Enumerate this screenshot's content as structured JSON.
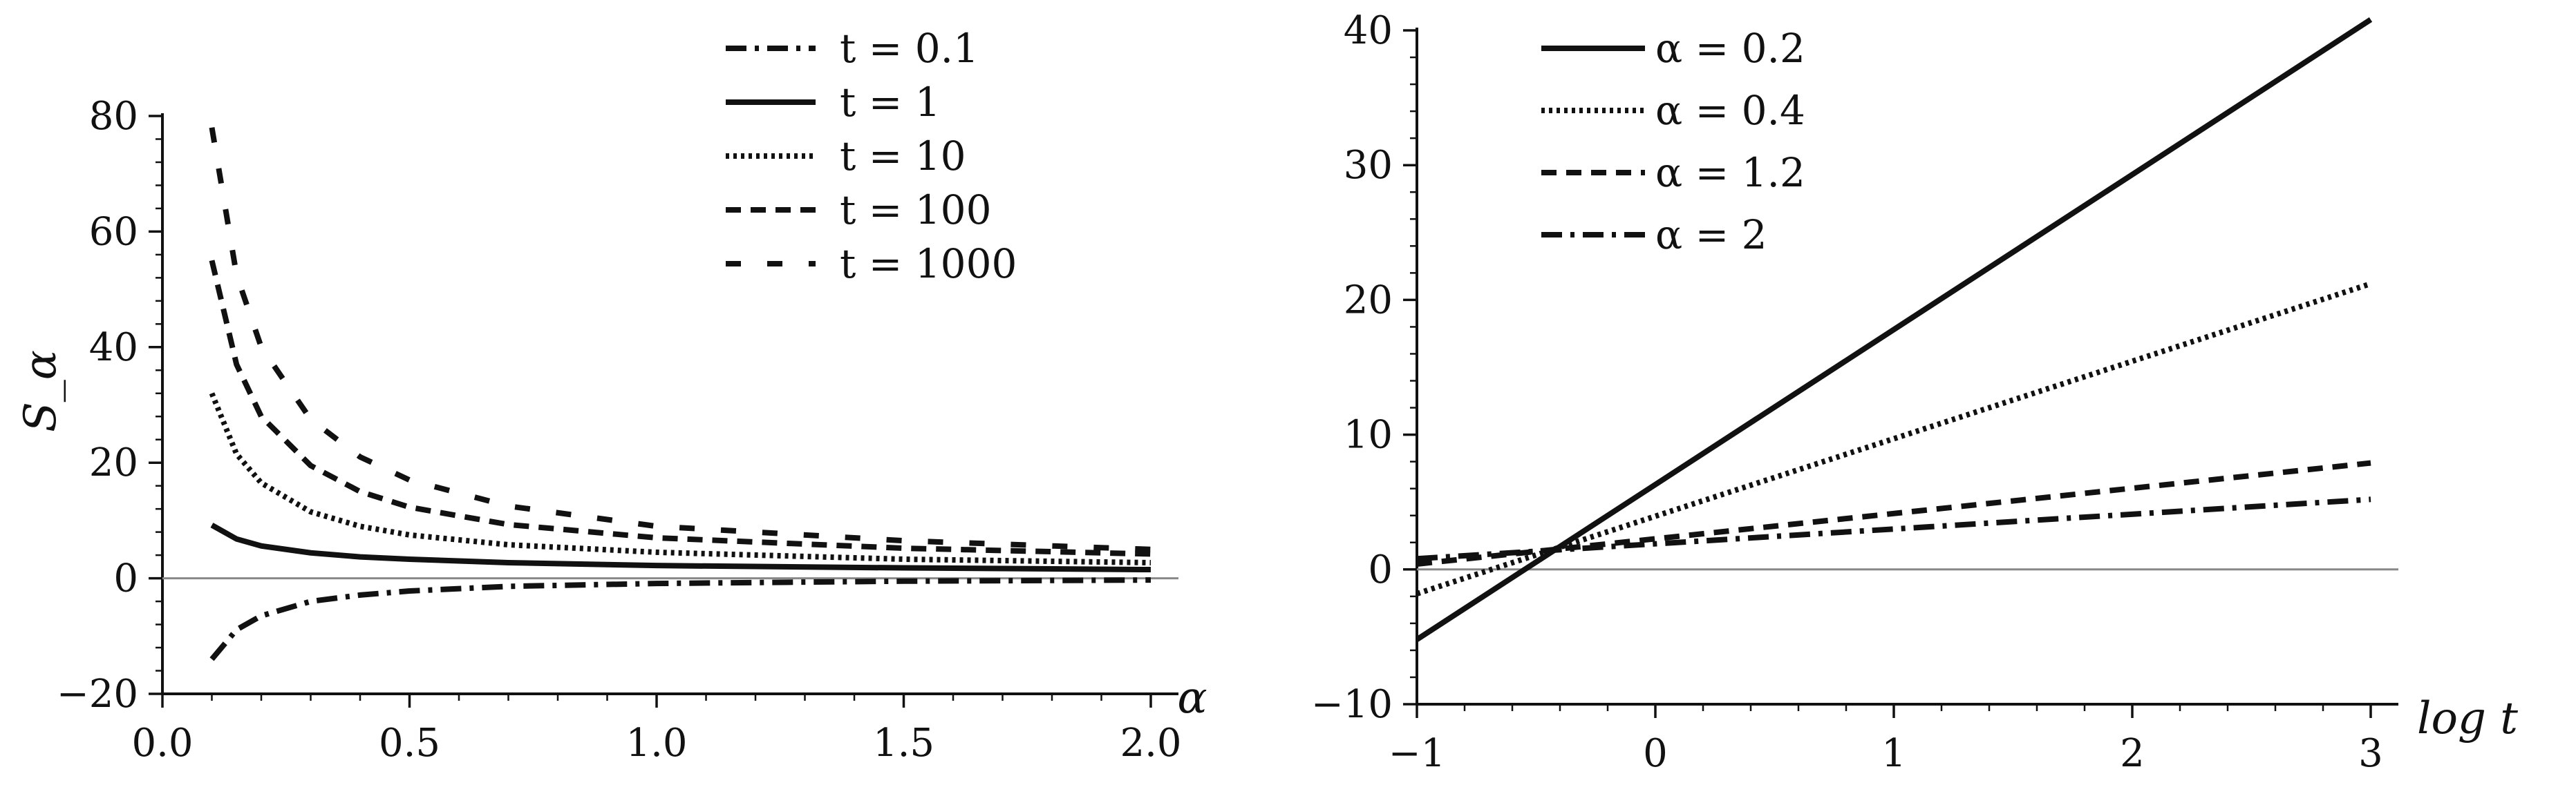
{
  "chart_data": [
    {
      "type": "line",
      "id": "left",
      "xlabel": "α",
      "ylabel": "S_α",
      "xlim": [
        0.0,
        2.0
      ],
      "ylim": [
        -20,
        80
      ],
      "xticks": [
        0.0,
        0.5,
        1.0,
        1.5,
        2.0
      ],
      "xtick_labels": [
        "0.0",
        "0.5",
        "1.0",
        "1.5",
        "2.0"
      ],
      "yticks": [
        -20,
        0,
        20,
        40,
        60,
        80
      ],
      "ytick_labels": [
        "−20",
        "0",
        "20",
        "40",
        "60",
        "80"
      ],
      "zero_line": true,
      "legend_position": "top-right",
      "series": [
        {
          "name": "t = 0.1",
          "style": "dashdot",
          "x": [
            0.1,
            0.15,
            0.2,
            0.3,
            0.4,
            0.5,
            0.7,
            1.0,
            1.5,
            2.0
          ],
          "y": [
            -14.0,
            -8.9,
            -6.5,
            -4.0,
            -2.9,
            -2.2,
            -1.4,
            -0.9,
            -0.5,
            -0.3
          ]
        },
        {
          "name": "t = 1",
          "style": "solid",
          "x": [
            0.1,
            0.15,
            0.2,
            0.3,
            0.4,
            0.5,
            0.7,
            1.0,
            1.5,
            2.0
          ],
          "y": [
            9.2,
            6.8,
            5.6,
            4.4,
            3.7,
            3.3,
            2.7,
            2.2,
            1.8,
            1.5
          ]
        },
        {
          "name": "t = 10",
          "style": "dotted",
          "x": [
            0.1,
            0.15,
            0.2,
            0.3,
            0.4,
            0.5,
            0.7,
            1.0,
            1.5,
            2.0
          ],
          "y": [
            32.0,
            21.5,
            16.5,
            11.5,
            9.0,
            7.5,
            5.8,
            4.5,
            3.3,
            2.7
          ]
        },
        {
          "name": "t = 100",
          "style": "dashed",
          "x": [
            0.1,
            0.15,
            0.2,
            0.3,
            0.4,
            0.5,
            0.7,
            1.0,
            1.5,
            2.0
          ],
          "y": [
            55.0,
            37.0,
            28.0,
            19.5,
            15.0,
            12.3,
            9.3,
            7.0,
            5.2,
            4.2
          ]
        },
        {
          "name": "t = 1000",
          "style": "dashed-long",
          "x": [
            0.1,
            0.15,
            0.2,
            0.3,
            0.4,
            0.5,
            0.7,
            1.0,
            1.5,
            2.0
          ],
          "y": [
            78.0,
            52.5,
            40.0,
            27.5,
            21.0,
            17.0,
            12.5,
            9.0,
            6.5,
            5.0
          ]
        }
      ]
    },
    {
      "type": "line",
      "id": "right",
      "xlabel": "log t",
      "ylabel": "",
      "xlim": [
        -1,
        3
      ],
      "ylim": [
        -10,
        40
      ],
      "xticks": [
        -1,
        0,
        1,
        2,
        3
      ],
      "xtick_labels": [
        "−1",
        "0",
        "1",
        "2",
        "3"
      ],
      "yticks": [
        -10,
        0,
        10,
        20,
        30,
        40
      ],
      "ytick_labels": [
        "−10",
        "0",
        "10",
        "20",
        "30",
        "40"
      ],
      "zero_line": true,
      "legend_position": "top-left",
      "series": [
        {
          "name": "α = 0.2",
          "style": "solid",
          "x": [
            -1,
            3
          ],
          "y": [
            -5.2,
            40.8
          ]
        },
        {
          "name": "α = 0.4",
          "style": "dotted",
          "x": [
            -1,
            3
          ],
          "y": [
            -1.8,
            21.2
          ]
        },
        {
          "name": "α = 1.2",
          "style": "dashed",
          "x": [
            -1,
            3
          ],
          "y": [
            0.4,
            7.9
          ]
        },
        {
          "name": "α = 2",
          "style": "dashdot",
          "x": [
            -1,
            3
          ],
          "y": [
            0.8,
            5.2
          ]
        }
      ]
    }
  ]
}
